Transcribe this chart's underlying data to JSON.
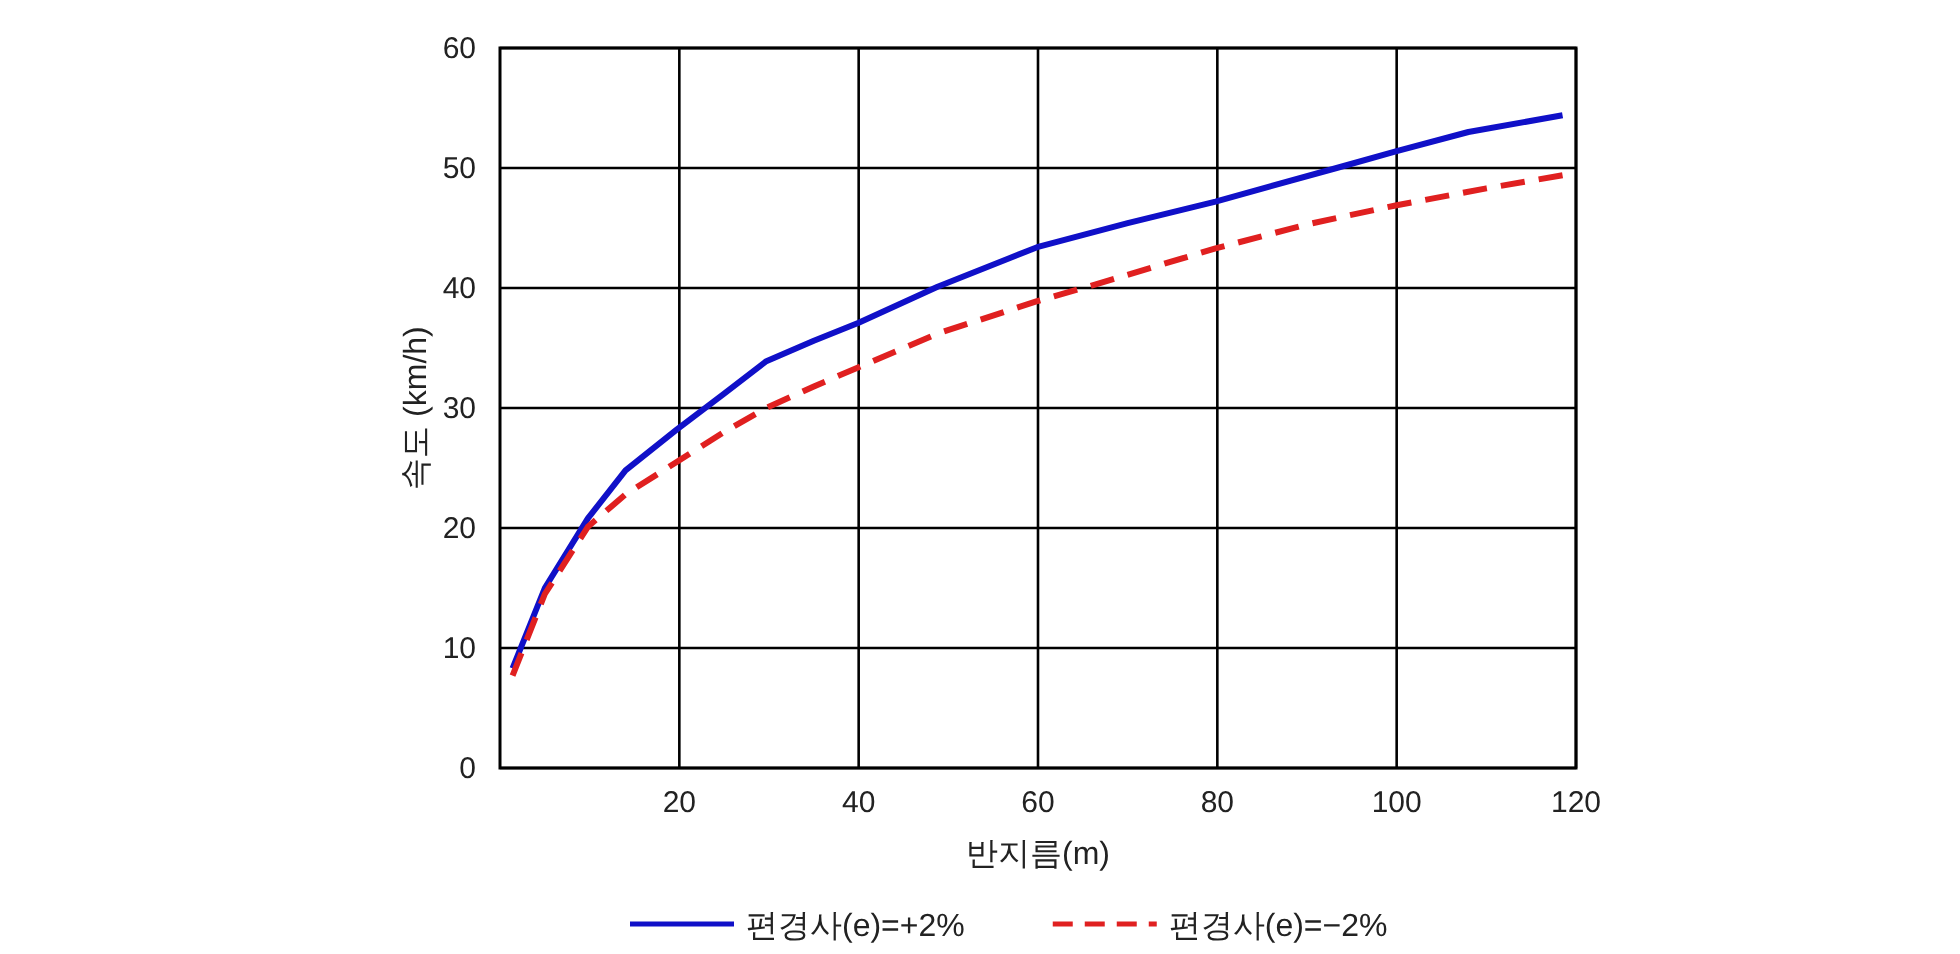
{
  "chart_data": {
    "type": "line",
    "xlabel": "반지름(m)",
    "ylabel": "속도 (km/h)",
    "xlim": [
      0,
      120
    ],
    "ylim": [
      0,
      60
    ],
    "xticks": [
      20,
      40,
      60,
      80,
      100,
      120
    ],
    "yticks": [
      0,
      10,
      20,
      30,
      40,
      50,
      60
    ],
    "grid": true,
    "legend": "bottom",
    "series": [
      {
        "name": "편경사(e)=+2%",
        "color": "#1010c8",
        "line_style": "solid",
        "x": [
          1.4,
          5,
          9.8,
          14,
          19.7,
          25,
          29.7,
          35,
          40,
          48.8,
          59.9,
          70,
          79.8,
          93.3,
          100,
          108,
          118.5
        ],
        "values": [
          8.3,
          15,
          20.8,
          24.8,
          28.2,
          31.2,
          33.9,
          35.6,
          37.1,
          40.1,
          43.4,
          45.4,
          47.2,
          50,
          51.4,
          53,
          54.4
        ]
      },
      {
        "name": "편경사(e)=−2%",
        "color": "#e02020",
        "line_style": "dashed",
        "x": [
          1.4,
          5,
          9.8,
          14,
          19.7,
          25,
          29.7,
          35,
          40,
          48.8,
          59.9,
          65.5,
          79.8,
          90,
          100,
          110,
          118.5
        ],
        "values": [
          7.7,
          14.5,
          20.1,
          22.8,
          25.5,
          28,
          30,
          31.8,
          33.4,
          36.2,
          38.9,
          40.1,
          43.3,
          45.3,
          46.9,
          48.3,
          49.4
        ]
      }
    ]
  }
}
